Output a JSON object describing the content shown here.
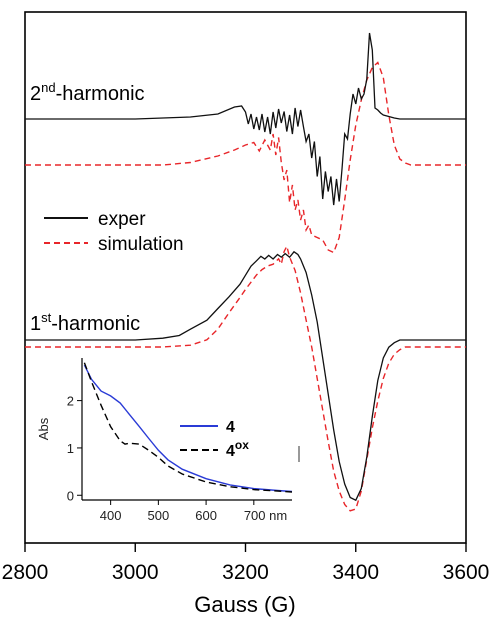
{
  "chart_data": {
    "type": "line",
    "xlabel": "Gauss (G)",
    "xlim": [
      2800,
      3600
    ],
    "xticks": [
      "2800",
      "3000",
      "3200",
      "3400",
      "3600"
    ],
    "trace_labels": {
      "second": {
        "base": "2",
        "sup": "nd",
        "rest": "-harmonic"
      },
      "first": {
        "base": "1",
        "sup": "st",
        "rest": "-harmonic"
      }
    },
    "legend": [
      {
        "label": "exper",
        "style": "solid",
        "color": "#000000"
      },
      {
        "label": "simulation",
        "style": "dashed",
        "color": "#e8262a"
      }
    ],
    "series": [
      {
        "name": "2nd-harmonic exper",
        "x": [
          2800,
          3000,
          3100,
          3150,
          3180,
          3193,
          3200,
          3205,
          3210,
          3215,
          3220,
          3225,
          3230,
          3235,
          3240,
          3245,
          3250,
          3255,
          3260,
          3265,
          3270,
          3275,
          3280,
          3285,
          3290,
          3295,
          3300,
          3305,
          3310,
          3315,
          3320,
          3325,
          3330,
          3335,
          3340,
          3345,
          3350,
          3355,
          3360,
          3365,
          3370,
          3375,
          3380,
          3385,
          3390,
          3395,
          3400,
          3405,
          3410,
          3415,
          3420,
          3425,
          3430,
          3435,
          3440,
          3445,
          3450,
          3460,
          3470,
          3480,
          3500,
          3550,
          3600
        ],
        "y": [
          0,
          0,
          0.04,
          0.1,
          0.24,
          0.26,
          0.14,
          -0.1,
          0.1,
          -0.2,
          0.04,
          -0.22,
          0.1,
          -0.26,
          0.04,
          -0.3,
          0.14,
          -0.18,
          0.2,
          -0.08,
          0.15,
          -0.25,
          0.08,
          -0.3,
          0.22,
          -0.15,
          0.18,
          -0.15,
          -0.45,
          -0.3,
          -0.78,
          -0.45,
          -1.15,
          -0.75,
          -1.6,
          -1.05,
          -1.45,
          -1.15,
          -1.72,
          -1.2,
          -1.65,
          -1.0,
          -0.3,
          -0.4,
          0.1,
          0.5,
          0.3,
          0.62,
          0.4,
          0.5,
          0.8,
          1.72,
          1.38,
          0.22,
          0.18,
          0.12,
          0.08,
          0.05,
          0.02,
          0.0,
          0.0,
          0.0,
          0.0
        ]
      },
      {
        "name": "2nd-harmonic simulation",
        "x": [
          2800,
          3050,
          3100,
          3150,
          3180,
          3200,
          3215,
          3225,
          3235,
          3245,
          3250,
          3255,
          3260,
          3265,
          3270,
          3275,
          3280,
          3285,
          3290,
          3295,
          3300,
          3305,
          3310,
          3315,
          3320,
          3330,
          3340,
          3350,
          3360,
          3370,
          3380,
          3390,
          3400,
          3410,
          3420,
          3430,
          3440,
          3450,
          3460,
          3470,
          3480,
          3490,
          3500,
          3550,
          3600
        ],
        "y": [
          0,
          0,
          0.05,
          0.18,
          0.3,
          0.4,
          0.45,
          0.28,
          0.5,
          0.3,
          0.62,
          0.2,
          0.55,
          0.05,
          -0.3,
          -0.1,
          -0.75,
          -0.4,
          -0.9,
          -0.7,
          -1.1,
          -0.9,
          -1.3,
          -1.2,
          -1.4,
          -1.45,
          -1.5,
          -1.7,
          -1.75,
          -1.45,
          -0.7,
          0.1,
          0.8,
          1.3,
          1.7,
          1.95,
          2.05,
          1.75,
          1.0,
          0.4,
          0.12,
          0.04,
          0.0,
          0.0,
          0.0
        ]
      },
      {
        "name": "1st-harmonic exper",
        "x": [
          2800,
          3000,
          3050,
          3080,
          3100,
          3130,
          3150,
          3170,
          3190,
          3200,
          3210,
          3220,
          3228,
          3235,
          3242,
          3250,
          3258,
          3265,
          3272,
          3280,
          3288,
          3295,
          3300,
          3310,
          3320,
          3330,
          3340,
          3350,
          3360,
          3370,
          3380,
          3390,
          3400,
          3410,
          3420,
          3430,
          3440,
          3450,
          3460,
          3470,
          3480,
          3500,
          3550,
          3600
        ],
        "y": [
          0,
          0,
          0.02,
          0.05,
          0.12,
          0.22,
          0.35,
          0.48,
          0.62,
          0.72,
          0.82,
          0.88,
          0.93,
          0.9,
          0.94,
          0.9,
          0.95,
          0.92,
          0.96,
          0.92,
          0.98,
          0.95,
          0.9,
          0.75,
          0.5,
          0.2,
          -0.2,
          -0.6,
          -1.0,
          -1.35,
          -1.6,
          -1.75,
          -1.78,
          -1.65,
          -1.3,
          -0.85,
          -0.45,
          -0.2,
          -0.08,
          -0.03,
          0.0,
          0.0,
          0.0,
          0.0
        ]
      },
      {
        "name": "1st-harmonic simulation",
        "x": [
          2800,
          3050,
          3100,
          3130,
          3150,
          3170,
          3190,
          3200,
          3210,
          3220,
          3230,
          3240,
          3250,
          3260,
          3265,
          3270,
          3275,
          3280,
          3290,
          3300,
          3310,
          3320,
          3330,
          3340,
          3350,
          3360,
          3370,
          3380,
          3390,
          3400,
          3410,
          3420,
          3430,
          3440,
          3450,
          3460,
          3470,
          3480,
          3490,
          3500,
          3550,
          3600
        ],
        "y": [
          0,
          0,
          0.02,
          0.08,
          0.2,
          0.38,
          0.55,
          0.64,
          0.72,
          0.8,
          0.86,
          0.9,
          0.92,
          0.98,
          0.92,
          1.06,
          1.12,
          1.0,
          0.85,
          0.6,
          0.3,
          0.0,
          -0.35,
          -0.7,
          -1.05,
          -1.38,
          -1.6,
          -1.75,
          -1.82,
          -1.8,
          -1.6,
          -1.25,
          -0.9,
          -0.6,
          -0.35,
          -0.18,
          -0.08,
          -0.03,
          0.0,
          0.0,
          0.0,
          0.0
        ]
      }
    ],
    "inset": {
      "type": "line",
      "ylabel": "Abs",
      "xlim": [
        340,
        780
      ],
      "ylim": [
        -0.1,
        2.9
      ],
      "xticks": [
        400,
        500,
        600,
        700
      ],
      "xtick_labels": [
        "400",
        "500",
        "600",
        "700 nm"
      ],
      "yticks": [
        0,
        1,
        2
      ],
      "legend": [
        {
          "label": "4",
          "sup": "",
          "color": "#2a3bd6",
          "style": "solid"
        },
        {
          "label": "4",
          "sup": "ox",
          "color": "#000000",
          "style": "dashed"
        }
      ],
      "series": [
        {
          "name": "4",
          "x": [
            345,
            360,
            380,
            400,
            420,
            440,
            460,
            480,
            500,
            520,
            550,
            600,
            650,
            700,
            750,
            780
          ],
          "y": [
            2.75,
            2.45,
            2.2,
            2.1,
            1.95,
            1.7,
            1.45,
            1.2,
            0.95,
            0.75,
            0.55,
            0.35,
            0.22,
            0.14,
            0.1,
            0.08
          ]
        },
        {
          "name": "4ox",
          "x": [
            345,
            360,
            380,
            400,
            420,
            430,
            440,
            460,
            480,
            500,
            520,
            550,
            600,
            650,
            700,
            750,
            780
          ],
          "y": [
            2.8,
            2.4,
            1.9,
            1.45,
            1.15,
            1.08,
            1.1,
            1.08,
            0.95,
            0.8,
            0.62,
            0.45,
            0.28,
            0.18,
            0.12,
            0.09,
            0.07
          ]
        }
      ]
    }
  }
}
